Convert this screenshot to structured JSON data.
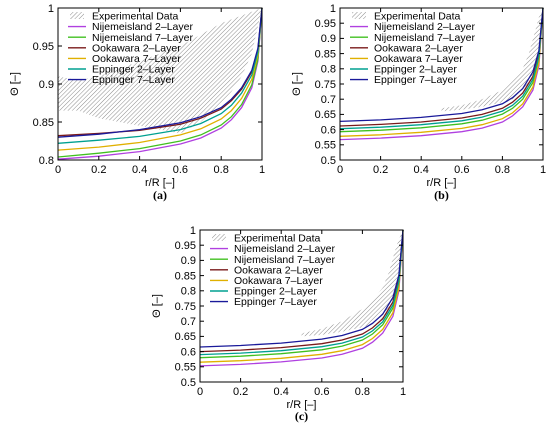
{
  "colors": {
    "experimental": "#9a9a9a",
    "nijemeisland_2_layer": "#b040e0",
    "nijemeisland_7_layer": "#40c020",
    "ookawara_2_layer": "#7a1a1a",
    "ookawara_7_layer": "#e0b000",
    "eppinger_2_layer": "#00a090",
    "eppinger_7_layer": "#1a1a9a"
  },
  "chart_data": [
    {
      "panel_label": "(a)",
      "type": "line",
      "xlabel": "r/R [–]",
      "ylabel": "Θ [–]",
      "xlim": [
        0,
        1
      ],
      "ylim": [
        0.8,
        1
      ],
      "xticks": [
        "0",
        "0.2",
        "0.4",
        "0.6",
        "0.8",
        "1"
      ],
      "yticks": [
        "0.8",
        "0.85",
        "0.9",
        "0.95",
        "1"
      ],
      "legend_position": "top-left",
      "legend": [
        "Experimental Data",
        "Nijemeisland 2–Layer",
        "Nijemeisland 7–Layer",
        "Ookawara 2–Layer",
        "Ookawara 7–Layer",
        "Eppinger 2–Layer",
        "Eppinger 7–Layer"
      ],
      "experimental_band": {
        "x": [
          0.0,
          0.1,
          0.2,
          0.3,
          0.4,
          0.5,
          0.6,
          0.7,
          0.8,
          0.85,
          0.9,
          0.95,
          1.0
        ],
        "lower": [
          0.865,
          0.865,
          0.855,
          0.85,
          0.845,
          0.84,
          0.835,
          0.85,
          0.875,
          0.89,
          0.91,
          0.94,
          1.0
        ],
        "upper": [
          0.91,
          0.905,
          0.91,
          0.92,
          0.93,
          0.94,
          0.95,
          0.965,
          0.98,
          0.985,
          0.99,
          0.995,
          1.0
        ]
      },
      "series": [
        {
          "name": "Nijemeisland 2–Layer",
          "color_key": "nijemeisland_2_layer",
          "x": [
            0,
            0.2,
            0.4,
            0.6,
            0.7,
            0.8,
            0.85,
            0.9,
            0.95,
            0.98,
            1.0
          ],
          "y": [
            0.801,
            0.805,
            0.811,
            0.821,
            0.829,
            0.842,
            0.853,
            0.869,
            0.895,
            0.93,
            1.0
          ]
        },
        {
          "name": "Nijemeisland 7–Layer",
          "color_key": "nijemeisland_7_layer",
          "x": [
            0,
            0.2,
            0.4,
            0.6,
            0.7,
            0.8,
            0.85,
            0.9,
            0.95,
            0.98,
            1.0
          ],
          "y": [
            0.804,
            0.809,
            0.815,
            0.825,
            0.833,
            0.846,
            0.857,
            0.873,
            0.899,
            0.933,
            1.0
          ]
        },
        {
          "name": "Ookawara 2–Layer",
          "color_key": "ookawara_2_layer",
          "x": [
            0,
            0.2,
            0.4,
            0.6,
            0.7,
            0.8,
            0.85,
            0.9,
            0.95,
            0.98,
            1.0
          ],
          "y": [
            0.832,
            0.835,
            0.839,
            0.847,
            0.855,
            0.867,
            0.878,
            0.893,
            0.916,
            0.945,
            1.0
          ]
        },
        {
          "name": "Ookawara 7–Layer",
          "color_key": "ookawara_7_layer",
          "x": [
            0,
            0.2,
            0.4,
            0.6,
            0.7,
            0.8,
            0.85,
            0.9,
            0.95,
            0.98,
            1.0
          ],
          "y": [
            0.813,
            0.817,
            0.823,
            0.833,
            0.841,
            0.854,
            0.865,
            0.881,
            0.906,
            0.938,
            1.0
          ]
        },
        {
          "name": "Eppinger 2–Layer",
          "color_key": "eppinger_2_layer",
          "x": [
            0,
            0.2,
            0.4,
            0.6,
            0.7,
            0.8,
            0.85,
            0.9,
            0.95,
            0.98,
            1.0
          ],
          "y": [
            0.822,
            0.826,
            0.831,
            0.84,
            0.848,
            0.861,
            0.872,
            0.888,
            0.912,
            0.942,
            1.0
          ]
        },
        {
          "name": "Eppinger 7–Layer",
          "color_key": "eppinger_7_layer",
          "x": [
            0,
            0.2,
            0.4,
            0.6,
            0.7,
            0.8,
            0.85,
            0.9,
            0.95,
            0.98,
            1.0
          ],
          "y": [
            0.83,
            0.834,
            0.84,
            0.849,
            0.857,
            0.869,
            0.88,
            0.895,
            0.918,
            0.947,
            1.0
          ]
        }
      ]
    },
    {
      "panel_label": "(b)",
      "type": "line",
      "xlabel": "r/R [–]",
      "ylabel": "Θ [–]",
      "xlim": [
        0,
        1
      ],
      "ylim": [
        0.5,
        1
      ],
      "xticks": [
        "0",
        "0.2",
        "0.4",
        "0.6",
        "0.8",
        "1"
      ],
      "yticks": [
        "0.5",
        "0.55",
        "0.6",
        "0.65",
        "0.7",
        "0.75",
        "0.8",
        "0.85",
        "0.9",
        "0.95",
        "1"
      ],
      "legend_position": "top-left",
      "legend": [
        "Experimental Data",
        "Nijemeisland 2–Layer",
        "Nijemeisland 7–Layer",
        "Ookawara 2–Layer",
        "Ookawara 7–Layer",
        "Eppinger 2–Layer",
        "Eppinger 7–Layer"
      ],
      "experimental_band": {
        "x": [
          0.5,
          0.6,
          0.7,
          0.8,
          0.85,
          0.9,
          0.93,
          0.96,
          0.98,
          1.0
        ],
        "lower": [
          0.66,
          0.665,
          0.675,
          0.69,
          0.7,
          0.72,
          0.74,
          0.78,
          0.84,
          1.0
        ],
        "upper": [
          0.67,
          0.68,
          0.7,
          0.73,
          0.76,
          0.8,
          0.85,
          0.92,
          0.97,
          1.0
        ]
      },
      "series": [
        {
          "name": "Nijemeisland 2–Layer",
          "color_key": "nijemeisland_2_layer",
          "x": [
            0,
            0.2,
            0.4,
            0.6,
            0.7,
            0.8,
            0.85,
            0.9,
            0.95,
            0.98,
            1.0
          ],
          "y": [
            0.567,
            0.572,
            0.58,
            0.593,
            0.605,
            0.625,
            0.645,
            0.675,
            0.73,
            0.81,
            1.0
          ]
        },
        {
          "name": "Nijemeisland 7–Layer",
          "color_key": "nijemeisland_7_layer",
          "x": [
            0,
            0.2,
            0.4,
            0.6,
            0.7,
            0.8,
            0.85,
            0.9,
            0.95,
            0.98,
            1.0
          ],
          "y": [
            0.593,
            0.598,
            0.606,
            0.619,
            0.631,
            0.651,
            0.67,
            0.7,
            0.755,
            0.83,
            1.0
          ]
        },
        {
          "name": "Ookawara 2–Layer",
          "color_key": "ookawara_2_layer",
          "x": [
            0,
            0.2,
            0.4,
            0.6,
            0.7,
            0.8,
            0.85,
            0.9,
            0.95,
            0.98,
            1.0
          ],
          "y": [
            0.612,
            0.617,
            0.625,
            0.638,
            0.65,
            0.67,
            0.69,
            0.72,
            0.775,
            0.85,
            1.0
          ]
        },
        {
          "name": "Ookawara 7–Layer",
          "color_key": "ookawara_7_layer",
          "x": [
            0,
            0.2,
            0.4,
            0.6,
            0.7,
            0.8,
            0.85,
            0.9,
            0.95,
            0.98,
            1.0
          ],
          "y": [
            0.578,
            0.583,
            0.591,
            0.604,
            0.616,
            0.636,
            0.655,
            0.685,
            0.74,
            0.82,
            1.0
          ]
        },
        {
          "name": "Eppinger 2–Layer",
          "color_key": "eppinger_2_layer",
          "x": [
            0,
            0.2,
            0.4,
            0.6,
            0.7,
            0.8,
            0.85,
            0.9,
            0.95,
            0.98,
            1.0
          ],
          "y": [
            0.603,
            0.608,
            0.616,
            0.629,
            0.641,
            0.661,
            0.68,
            0.71,
            0.765,
            0.84,
            1.0
          ]
        },
        {
          "name": "Eppinger 7–Layer",
          "color_key": "eppinger_7_layer",
          "x": [
            0,
            0.2,
            0.4,
            0.6,
            0.7,
            0.8,
            0.85,
            0.9,
            0.95,
            0.98,
            1.0
          ],
          "y": [
            0.627,
            0.632,
            0.64,
            0.653,
            0.665,
            0.685,
            0.705,
            0.735,
            0.79,
            0.86,
            1.0
          ]
        }
      ]
    },
    {
      "panel_label": "(c)",
      "type": "line",
      "xlabel": "r/R [–]",
      "ylabel": "Θ [–]",
      "xlim": [
        0,
        1
      ],
      "ylim": [
        0.5,
        1
      ],
      "xticks": [
        "0",
        "0.2",
        "0.4",
        "0.6",
        "0.8",
        "1"
      ],
      "yticks": [
        "0.5",
        "0.55",
        "0.6",
        "0.65",
        "0.7",
        "0.75",
        "0.8",
        "0.85",
        "0.9",
        "0.95",
        "1"
      ],
      "legend_position": "top-left",
      "legend": [
        "Experimental Data",
        "Nijemeisland 2–Layer",
        "Nijemeisland 7–Layer",
        "Ookawara 2–Layer",
        "Ookawara 7–Layer",
        "Eppinger 2–Layer",
        "Eppinger 7–Layer"
      ],
      "experimental_band": {
        "x": [
          0.5,
          0.6,
          0.7,
          0.8,
          0.85,
          0.9,
          0.93,
          0.96,
          0.98,
          1.0
        ],
        "lower": [
          0.65,
          0.655,
          0.665,
          0.68,
          0.69,
          0.71,
          0.73,
          0.77,
          0.83,
          1.0
        ],
        "upper": [
          0.66,
          0.675,
          0.7,
          0.74,
          0.77,
          0.81,
          0.86,
          0.93,
          0.97,
          1.0
        ]
      },
      "series": [
        {
          "name": "Nijemeisland 2–Layer",
          "color_key": "nijemeisland_2_layer",
          "x": [
            0,
            0.2,
            0.4,
            0.6,
            0.7,
            0.8,
            0.85,
            0.9,
            0.95,
            0.98,
            1.0
          ],
          "y": [
            0.553,
            0.558,
            0.566,
            0.579,
            0.591,
            0.611,
            0.631,
            0.661,
            0.716,
            0.8,
            1.0
          ]
        },
        {
          "name": "Nijemeisland 7–Layer",
          "color_key": "nijemeisland_7_layer",
          "x": [
            0,
            0.2,
            0.4,
            0.6,
            0.7,
            0.8,
            0.85,
            0.9,
            0.95,
            0.98,
            1.0
          ],
          "y": [
            0.58,
            0.585,
            0.593,
            0.606,
            0.618,
            0.638,
            0.658,
            0.688,
            0.743,
            0.822,
            1.0
          ]
        },
        {
          "name": "Ookawara 2–Layer",
          "color_key": "ookawara_2_layer",
          "x": [
            0,
            0.2,
            0.4,
            0.6,
            0.7,
            0.8,
            0.85,
            0.9,
            0.95,
            0.98,
            1.0
          ],
          "y": [
            0.6,
            0.605,
            0.613,
            0.626,
            0.638,
            0.658,
            0.678,
            0.708,
            0.763,
            0.84,
            1.0
          ]
        },
        {
          "name": "Ookawara 7–Layer",
          "color_key": "ookawara_7_layer",
          "x": [
            0,
            0.2,
            0.4,
            0.6,
            0.7,
            0.8,
            0.85,
            0.9,
            0.95,
            0.98,
            1.0
          ],
          "y": [
            0.565,
            0.57,
            0.578,
            0.591,
            0.603,
            0.623,
            0.643,
            0.673,
            0.728,
            0.81,
            1.0
          ]
        },
        {
          "name": "Eppinger 2–Layer",
          "color_key": "eppinger_2_layer",
          "x": [
            0,
            0.2,
            0.4,
            0.6,
            0.7,
            0.8,
            0.85,
            0.9,
            0.95,
            0.98,
            1.0
          ],
          "y": [
            0.59,
            0.595,
            0.603,
            0.616,
            0.628,
            0.648,
            0.668,
            0.698,
            0.753,
            0.83,
            1.0
          ]
        },
        {
          "name": "Eppinger 7–Layer",
          "color_key": "eppinger_7_layer",
          "x": [
            0,
            0.2,
            0.4,
            0.6,
            0.7,
            0.8,
            0.85,
            0.9,
            0.95,
            0.98,
            1.0
          ],
          "y": [
            0.615,
            0.62,
            0.628,
            0.641,
            0.653,
            0.673,
            0.693,
            0.723,
            0.778,
            0.852,
            1.0
          ]
        }
      ]
    }
  ]
}
